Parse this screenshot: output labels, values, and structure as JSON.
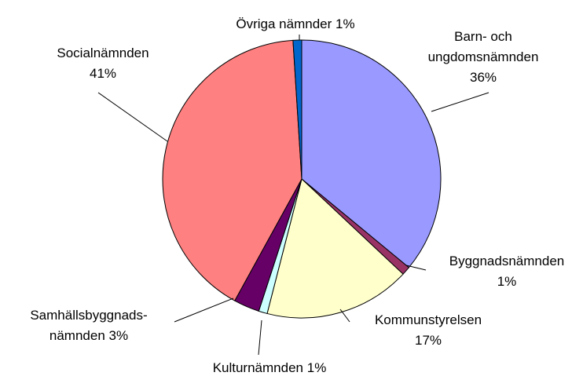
{
  "chart_data": {
    "type": "pie",
    "categories": [
      "Barn- och ungdomsnämnden",
      "Byggnadsnämnden",
      "Kommunstyrelsen",
      "Kulturnämnden",
      "Samhällsbyggnads-nämnden",
      "Socialnämnden",
      "Övriga nämnder"
    ],
    "values": [
      36,
      1,
      17,
      1,
      3,
      41,
      1
    ],
    "value_labels": [
      "36%",
      "1%",
      "17%",
      "1%",
      "3%",
      "41%",
      "1%"
    ],
    "colors": [
      "#9999ff",
      "#993366",
      "#ffffcc",
      "#ccffff",
      "#660066",
      "#ff8080",
      "#0066cc"
    ]
  }
}
